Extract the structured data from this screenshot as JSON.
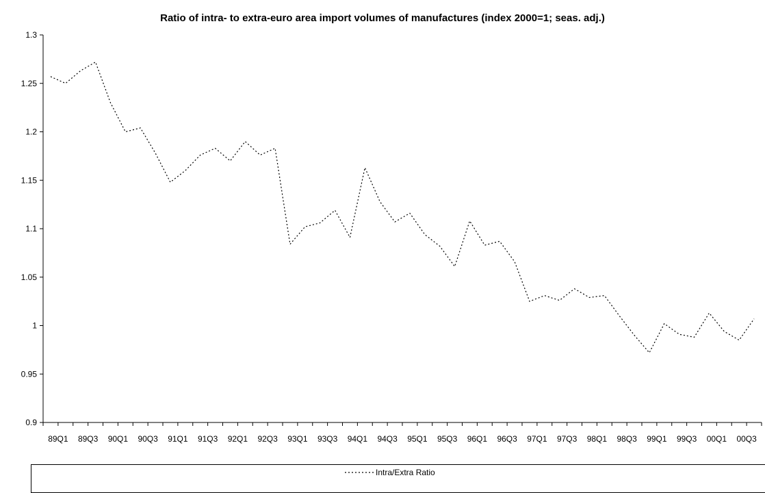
{
  "chart_data": {
    "type": "line",
    "title": "Ratio of intra- to extra-euro area import volumes of manufactures (index 2000=1; seas. adj.)",
    "xlabel": "",
    "ylabel": "",
    "ylim": [
      0.9,
      1.3
    ],
    "yticks": [
      "0.9",
      "0.95",
      "1",
      "1.05",
      "1.1",
      "1.15",
      "1.2",
      "1.25",
      "1.3"
    ],
    "x": [
      "89Q1",
      "89Q2",
      "89Q3",
      "89Q4",
      "90Q1",
      "90Q2",
      "90Q3",
      "90Q4",
      "91Q1",
      "91Q2",
      "91Q3",
      "91Q4",
      "92Q1",
      "92Q2",
      "92Q3",
      "92Q4",
      "93Q1",
      "93Q2",
      "93Q3",
      "93Q4",
      "94Q1",
      "94Q2",
      "94Q3",
      "94Q4",
      "95Q1",
      "95Q2",
      "95Q3",
      "95Q4",
      "96Q1",
      "96Q2",
      "96Q3",
      "96Q4",
      "97Q1",
      "97Q2",
      "97Q3",
      "97Q4",
      "98Q1",
      "98Q2",
      "98Q3",
      "98Q4",
      "99Q1",
      "99Q2",
      "99Q3",
      "99Q4",
      "00Q1",
      "00Q2",
      "00Q3",
      "00Q4"
    ],
    "x_tick_labels": [
      "89Q1",
      "89Q3",
      "90Q1",
      "90Q3",
      "91Q1",
      "91Q3",
      "92Q1",
      "92Q3",
      "93Q1",
      "93Q3",
      "94Q1",
      "94Q3",
      "95Q1",
      "95Q3",
      "96Q1",
      "96Q3",
      "97Q1",
      "97Q3",
      "98Q1",
      "98Q3",
      "99Q1",
      "99Q3",
      "00Q1",
      "00Q3"
    ],
    "grid": false,
    "legend_position": "bottom",
    "series": [
      {
        "name": "Intra/Extra Ratio",
        "color": "#000000",
        "style": "dotted",
        "values": [
          1.257,
          1.25,
          1.263,
          1.272,
          1.23,
          1.2,
          1.204,
          1.178,
          1.148,
          1.16,
          1.176,
          1.183,
          1.17,
          1.19,
          1.176,
          1.183,
          1.084,
          1.102,
          1.106,
          1.119,
          1.091,
          1.163,
          1.128,
          1.107,
          1.116,
          1.094,
          1.082,
          1.061,
          1.108,
          1.083,
          1.087,
          1.066,
          1.025,
          1.031,
          1.026,
          1.038,
          1.029,
          1.031,
          1.01,
          0.99,
          0.972,
          1.002,
          0.991,
          0.988,
          1.013,
          0.994,
          0.985,
          1.007
        ]
      }
    ]
  }
}
